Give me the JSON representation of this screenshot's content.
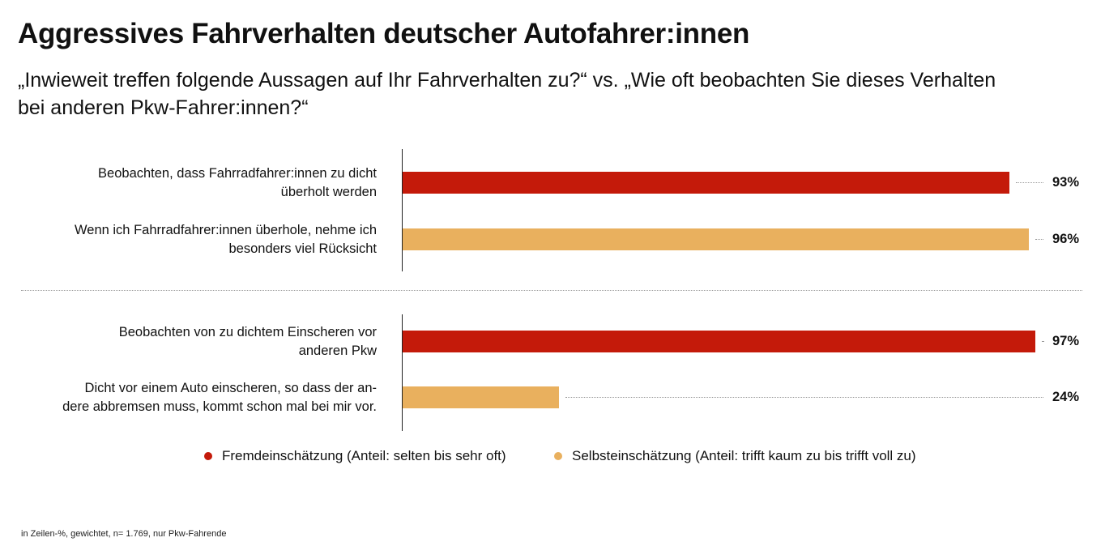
{
  "title": "Aggressives Fahrverhalten deutscher Autofahrer:innen",
  "subtitle": "„Inwieweit treffen folgende Aussagen auf Ihr Fahrverhalten zu?“ vs. „Wie oft beobachten Sie dieses Verhalten bei anderen Pkw-Fahrer:innen?“",
  "footnote": "in Zeilen-%, gewichtet, n= 1.769, nur Pkw-Fahrende",
  "colors": {
    "fremd": "#c41a0a",
    "selbst": "#e9b05e"
  },
  "chart_data": {
    "type": "bar",
    "orientation": "horizontal",
    "xlim": [
      0,
      100
    ],
    "unit": "%",
    "groups": [
      {
        "bars": [
          {
            "label_lines": [
              "Beobachten, dass Fahrradfahrer:innen zu dicht",
              "überholt werden"
            ],
            "value": 93,
            "value_label": "93%",
            "series": "fremd"
          },
          {
            "label_lines": [
              "Wenn ich Fahrradfahrer:innen überhole, nehme ich",
              "besonders viel Rücksicht"
            ],
            "value": 96,
            "value_label": "96%",
            "series": "selbst"
          }
        ]
      },
      {
        "bars": [
          {
            "label_lines": [
              "Beobachten von zu dichtem Einscheren vor",
              "anderen Pkw"
            ],
            "value": 97,
            "value_label": "97%",
            "series": "fremd"
          },
          {
            "label_lines": [
              "Dicht vor einem Auto einscheren, so dass der an-",
              "dere abbremsen muss, kommt schon mal bei mir vor."
            ],
            "value": 24,
            "value_label": "24%",
            "series": "selbst"
          }
        ]
      }
    ],
    "legend": [
      {
        "key": "fremd",
        "label": "Fremdeinschätzung (Anteil: selten bis sehr oft)"
      },
      {
        "key": "selbst",
        "label": "Selbsteinschätzung (Anteil: trifft kaum zu bis trifft voll zu)"
      }
    ]
  }
}
